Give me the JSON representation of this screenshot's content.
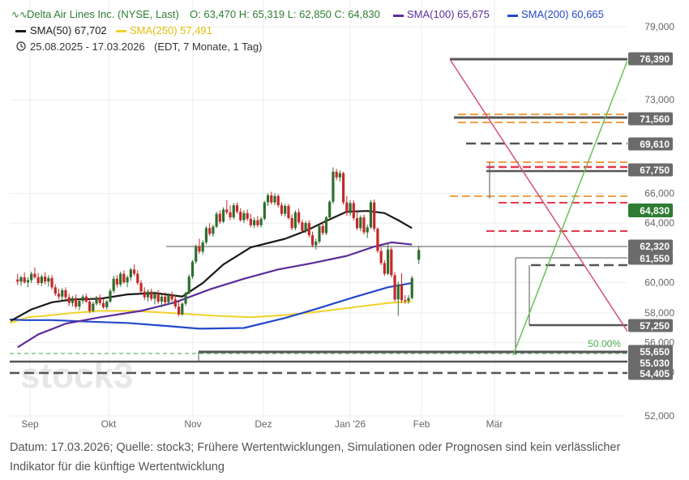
{
  "header": {
    "instrument": "Delta Air Lines Inc. (NYSE, Last)",
    "ohlc": "O: 63,470   H: 65,319   L: 62,850   C: 64,830",
    "sma100": "SMA(100)  65,675",
    "sma200": "SMA(200)  60,665",
    "sma50": "SMA(50)  67,702",
    "sma250": "SMA(250)  57,491",
    "period": "25.08.2025 - 17.03.2026",
    "period_note": "(EDT, 7 Monate, 1 Tag)"
  },
  "watermark": "stock3",
  "fib_label": "50.00%",
  "caption": {
    "line1": "Datum: 17.03.2026; Quelle: stock3; Frühere Wertentwicklungen, Simulationen oder Prognosen sind kein verlässlicher",
    "line2": "Indikator für die künftige Wertentwicklung"
  },
  "colors": {
    "up": "#2e6e2e",
    "down": "#c62828",
    "sma50": "#1a1a1a",
    "sma100": "#5b2d9a",
    "sma200": "#2449c9",
    "sma250": "#f0d22a",
    "price_badge": "#2e7d32",
    "level_badge": "#6b6b6b",
    "orange_level": "#f0a04b",
    "red_level": "#e53950",
    "trend_red": "#d64f7a",
    "trend_green": "#6bbf59"
  },
  "chart_data": {
    "type": "candlestick",
    "x_axis_ticks": [
      "Sep",
      "Okt",
      "Nov",
      "Dez",
      "Jan '26",
      "Feb",
      "Mär"
    ],
    "y_axis_ticks": [
      "52,000",
      "54,000",
      "56,000",
      "58,000",
      "60,000",
      "64,000",
      "66,000",
      "73,000",
      "79,000"
    ],
    "ylim": [
      51.4,
      79.5
    ],
    "last_price": "64,830",
    "level_labels": [
      "76,390",
      "71,560",
      "69,610",
      "67,750",
      "62,320",
      "61,550",
      "57,250",
      "55,650",
      "55,030",
      "54,405"
    ],
    "candles": [
      {
        "x": 2,
        "o": 60.7,
        "h": 61.5,
        "l": 59.9,
        "c": 60.4
      },
      {
        "x": 3,
        "o": 60.4,
        "h": 61.2,
        "l": 59.8,
        "c": 61.0
      },
      {
        "x": 4,
        "o": 61.0,
        "h": 61.7,
        "l": 60.1,
        "c": 60.3
      },
      {
        "x": 5,
        "o": 60.3,
        "h": 61.0,
        "l": 59.6,
        "c": 60.6
      },
      {
        "x": 6,
        "o": 60.6,
        "h": 61.8,
        "l": 60.2,
        "c": 61.5
      },
      {
        "x": 7,
        "o": 61.5,
        "h": 62.4,
        "l": 60.8,
        "c": 61.0
      },
      {
        "x": 8,
        "o": 61.0,
        "h": 61.6,
        "l": 59.9,
        "c": 60.2
      },
      {
        "x": 9,
        "o": 60.2,
        "h": 61.4,
        "l": 59.8,
        "c": 61.1
      },
      {
        "x": 10,
        "o": 61.1,
        "h": 61.7,
        "l": 60.0,
        "c": 60.4
      },
      {
        "x": 11,
        "o": 60.4,
        "h": 61.3,
        "l": 59.7,
        "c": 60.9
      },
      {
        "x": 12,
        "o": 60.9,
        "h": 61.3,
        "l": 59.3,
        "c": 59.6
      },
      {
        "x": 13,
        "o": 59.6,
        "h": 60.0,
        "l": 58.4,
        "c": 58.7
      },
      {
        "x": 14,
        "o": 58.7,
        "h": 59.4,
        "l": 57.9,
        "c": 58.3
      },
      {
        "x": 15,
        "o": 58.3,
        "h": 59.5,
        "l": 57.8,
        "c": 59.2
      },
      {
        "x": 16,
        "o": 59.2,
        "h": 59.6,
        "l": 57.9,
        "c": 58.2
      },
      {
        "x": 17,
        "o": 58.2,
        "h": 58.7,
        "l": 57.0,
        "c": 57.4
      },
      {
        "x": 18,
        "o": 57.4,
        "h": 58.4,
        "l": 56.9,
        "c": 58.1
      },
      {
        "x": 19,
        "o": 58.1,
        "h": 58.6,
        "l": 56.6,
        "c": 56.9
      },
      {
        "x": 20,
        "o": 56.9,
        "h": 58.0,
        "l": 56.4,
        "c": 57.7
      },
      {
        "x": 21,
        "o": 57.7,
        "h": 58.6,
        "l": 57.3,
        "c": 58.3
      },
      {
        "x": 22,
        "o": 58.3,
        "h": 58.7,
        "l": 57.4,
        "c": 57.6
      },
      {
        "x": 23,
        "o": 57.6,
        "h": 58.1,
        "l": 56.0,
        "c": 56.3
      },
      {
        "x": 24,
        "o": 56.3,
        "h": 57.6,
        "l": 56.1,
        "c": 57.3
      },
      {
        "x": 25,
        "o": 57.3,
        "h": 58.4,
        "l": 57.0,
        "c": 58.2
      },
      {
        "x": 26,
        "o": 58.2,
        "h": 58.6,
        "l": 57.1,
        "c": 57.4
      },
      {
        "x": 27,
        "o": 57.4,
        "h": 58.0,
        "l": 56.6,
        "c": 56.8
      },
      {
        "x": 28,
        "o": 56.8,
        "h": 57.8,
        "l": 56.5,
        "c": 57.6
      },
      {
        "x": 29,
        "o": 57.6,
        "h": 59.4,
        "l": 57.4,
        "c": 59.1
      },
      {
        "x": 30,
        "o": 59.1,
        "h": 61.2,
        "l": 58.8,
        "c": 60.8
      },
      {
        "x": 31,
        "o": 60.8,
        "h": 61.3,
        "l": 59.6,
        "c": 60.0
      },
      {
        "x": 32,
        "o": 60.0,
        "h": 61.8,
        "l": 59.7,
        "c": 61.5
      },
      {
        "x": 33,
        "o": 61.5,
        "h": 62.0,
        "l": 60.1,
        "c": 60.3
      },
      {
        "x": 34,
        "o": 60.3,
        "h": 61.3,
        "l": 59.6,
        "c": 61.0
      },
      {
        "x": 35,
        "o": 61.0,
        "h": 62.3,
        "l": 60.5,
        "c": 62.1
      },
      {
        "x": 36,
        "o": 62.1,
        "h": 62.8,
        "l": 61.2,
        "c": 61.5
      },
      {
        "x": 37,
        "o": 61.5,
        "h": 62.0,
        "l": 59.9,
        "c": 60.2
      },
      {
        "x": 38,
        "o": 60.2,
        "h": 60.6,
        "l": 58.7,
        "c": 59.0
      },
      {
        "x": 39,
        "o": 59.0,
        "h": 59.6,
        "l": 57.8,
        "c": 58.2
      },
      {
        "x": 40,
        "o": 58.2,
        "h": 59.3,
        "l": 57.6,
        "c": 59.0
      },
      {
        "x": 41,
        "o": 59.0,
        "h": 59.4,
        "l": 57.7,
        "c": 58.0
      },
      {
        "x": 42,
        "o": 58.0,
        "h": 59.0,
        "l": 57.2,
        "c": 58.7
      },
      {
        "x": 43,
        "o": 58.7,
        "h": 59.2,
        "l": 57.3,
        "c": 57.6
      },
      {
        "x": 44,
        "o": 57.6,
        "h": 58.6,
        "l": 56.8,
        "c": 58.3
      },
      {
        "x": 45,
        "o": 58.3,
        "h": 58.9,
        "l": 57.2,
        "c": 57.5
      },
      {
        "x": 46,
        "o": 57.5,
        "h": 58.8,
        "l": 57.2,
        "c": 58.5
      },
      {
        "x": 47,
        "o": 58.5,
        "h": 59.0,
        "l": 57.6,
        "c": 57.9
      },
      {
        "x": 48,
        "o": 57.9,
        "h": 58.5,
        "l": 56.6,
        "c": 56.9
      },
      {
        "x": 49,
        "o": 56.9,
        "h": 57.6,
        "l": 55.5,
        "c": 55.8
      },
      {
        "x": 50,
        "o": 55.8,
        "h": 57.5,
        "l": 55.6,
        "c": 57.3
      },
      {
        "x": 51,
        "o": 57.3,
        "h": 59.0,
        "l": 57.0,
        "c": 58.8
      },
      {
        "x": 52,
        "o": 58.8,
        "h": 61.4,
        "l": 58.6,
        "c": 61.1
      },
      {
        "x": 53,
        "o": 61.1,
        "h": 63.4,
        "l": 60.8,
        "c": 63.2
      },
      {
        "x": 54,
        "o": 63.2,
        "h": 65.6,
        "l": 62.9,
        "c": 65.3
      },
      {
        "x": 55,
        "o": 65.3,
        "h": 66.4,
        "l": 64.3,
        "c": 64.6
      },
      {
        "x": 56,
        "o": 64.6,
        "h": 66.2,
        "l": 64.2,
        "c": 65.9
      },
      {
        "x": 57,
        "o": 65.9,
        "h": 68.2,
        "l": 65.6,
        "c": 67.9
      },
      {
        "x": 58,
        "o": 67.9,
        "h": 68.6,
        "l": 66.8,
        "c": 67.1
      },
      {
        "x": 59,
        "o": 67.1,
        "h": 68.4,
        "l": 66.7,
        "c": 68.1
      },
      {
        "x": 60,
        "o": 68.1,
        "h": 70.2,
        "l": 67.9,
        "c": 69.9
      },
      {
        "x": 61,
        "o": 69.9,
        "h": 70.4,
        "l": 68.5,
        "c": 68.8
      },
      {
        "x": 62,
        "o": 68.8,
        "h": 70.8,
        "l": 68.6,
        "c": 70.5
      },
      {
        "x": 63,
        "o": 70.5,
        "h": 71.8,
        "l": 69.8,
        "c": 70.1
      },
      {
        "x": 64,
        "o": 70.1,
        "h": 71.1,
        "l": 69.0,
        "c": 69.4
      },
      {
        "x": 65,
        "o": 69.4,
        "h": 71.4,
        "l": 69.1,
        "c": 71.1
      },
      {
        "x": 66,
        "o": 71.1,
        "h": 71.5,
        "l": 69.9,
        "c": 70.2
      },
      {
        "x": 67,
        "o": 70.2,
        "h": 70.7,
        "l": 68.8,
        "c": 69.0
      },
      {
        "x": 68,
        "o": 69.0,
        "h": 70.4,
        "l": 68.6,
        "c": 70.0
      },
      {
        "x": 69,
        "o": 70.0,
        "h": 70.5,
        "l": 68.9,
        "c": 69.2
      },
      {
        "x": 70,
        "o": 69.2,
        "h": 69.9,
        "l": 68.0,
        "c": 68.3
      },
      {
        "x": 71,
        "o": 68.3,
        "h": 69.4,
        "l": 67.9,
        "c": 69.0
      },
      {
        "x": 72,
        "o": 69.0,
        "h": 69.6,
        "l": 68.0,
        "c": 68.3
      },
      {
        "x": 73,
        "o": 68.3,
        "h": 69.5,
        "l": 68.0,
        "c": 69.2
      },
      {
        "x": 74,
        "o": 69.2,
        "h": 71.7,
        "l": 69.0,
        "c": 71.5
      },
      {
        "x": 75,
        "o": 71.5,
        "h": 72.8,
        "l": 71.0,
        "c": 72.5
      },
      {
        "x": 76,
        "o": 72.5,
        "h": 73.0,
        "l": 71.2,
        "c": 71.5
      },
      {
        "x": 77,
        "o": 71.5,
        "h": 72.8,
        "l": 71.1,
        "c": 72.4
      },
      {
        "x": 78,
        "o": 72.4,
        "h": 72.7,
        "l": 70.8,
        "c": 71.1
      },
      {
        "x": 79,
        "o": 71.1,
        "h": 71.5,
        "l": 69.6,
        "c": 69.9
      },
      {
        "x": 80,
        "o": 69.9,
        "h": 71.3,
        "l": 69.5,
        "c": 71.0
      },
      {
        "x": 81,
        "o": 71.0,
        "h": 71.3,
        "l": 69.1,
        "c": 69.3
      },
      {
        "x": 82,
        "o": 69.3,
        "h": 69.8,
        "l": 67.6,
        "c": 67.9
      },
      {
        "x": 83,
        "o": 67.9,
        "h": 70.4,
        "l": 67.6,
        "c": 70.1
      },
      {
        "x": 84,
        "o": 70.1,
        "h": 70.6,
        "l": 68.4,
        "c": 68.7
      },
      {
        "x": 85,
        "o": 68.7,
        "h": 69.1,
        "l": 67.2,
        "c": 67.5
      },
      {
        "x": 86,
        "o": 67.5,
        "h": 68.9,
        "l": 67.2,
        "c": 68.6
      },
      {
        "x": 87,
        "o": 68.6,
        "h": 69.0,
        "l": 66.6,
        "c": 66.9
      },
      {
        "x": 88,
        "o": 66.9,
        "h": 67.4,
        "l": 65.2,
        "c": 65.5
      },
      {
        "x": 89,
        "o": 65.5,
        "h": 66.4,
        "l": 64.9,
        "c": 66.0
      },
      {
        "x": 90,
        "o": 66.0,
        "h": 68.4,
        "l": 65.7,
        "c": 68.2
      },
      {
        "x": 91,
        "o": 68.2,
        "h": 68.8,
        "l": 66.9,
        "c": 67.2
      },
      {
        "x": 92,
        "o": 67.2,
        "h": 69.6,
        "l": 66.9,
        "c": 69.4
      },
      {
        "x": 93,
        "o": 69.4,
        "h": 71.8,
        "l": 69.1,
        "c": 71.6
      },
      {
        "x": 94,
        "o": 71.6,
        "h": 76.4,
        "l": 71.3,
        "c": 75.8
      },
      {
        "x": 95,
        "o": 75.8,
        "h": 76.2,
        "l": 74.6,
        "c": 75.0
      },
      {
        "x": 96,
        "o": 75.0,
        "h": 76.0,
        "l": 74.4,
        "c": 75.6
      },
      {
        "x": 97,
        "o": 75.6,
        "h": 75.8,
        "l": 71.2,
        "c": 71.5
      },
      {
        "x": 98,
        "o": 71.5,
        "h": 72.4,
        "l": 69.6,
        "c": 70.0
      },
      {
        "x": 99,
        "o": 70.0,
        "h": 71.8,
        "l": 69.6,
        "c": 71.4
      },
      {
        "x": 100,
        "o": 71.4,
        "h": 71.8,
        "l": 69.0,
        "c": 69.3
      },
      {
        "x": 101,
        "o": 69.3,
        "h": 70.1,
        "l": 67.6,
        "c": 67.9
      },
      {
        "x": 102,
        "o": 67.9,
        "h": 69.7,
        "l": 67.5,
        "c": 69.4
      },
      {
        "x": 103,
        "o": 69.4,
        "h": 69.8,
        "l": 67.0,
        "c": 67.3
      },
      {
        "x": 104,
        "o": 67.3,
        "h": 68.4,
        "l": 66.5,
        "c": 68.0
      },
      {
        "x": 105,
        "o": 68.0,
        "h": 71.8,
        "l": 67.8,
        "c": 71.5
      },
      {
        "x": 106,
        "o": 71.5,
        "h": 71.9,
        "l": 67.4,
        "c": 67.8
      },
      {
        "x": 107,
        "o": 67.8,
        "h": 68.0,
        "l": 64.4,
        "c": 64.7
      },
      {
        "x": 108,
        "o": 64.7,
        "h": 65.2,
        "l": 62.7,
        "c": 63.0
      },
      {
        "x": 109,
        "o": 63.0,
        "h": 63.4,
        "l": 61.2,
        "c": 61.5
      },
      {
        "x": 110,
        "o": 61.5,
        "h": 65.8,
        "l": 61.3,
        "c": 64.9
      },
      {
        "x": 111,
        "o": 64.9,
        "h": 65.2,
        "l": 61.0,
        "c": 61.3
      },
      {
        "x": 112,
        "o": 61.3,
        "h": 61.7,
        "l": 57.6,
        "c": 57.9
      },
      {
        "x": 113,
        "o": 57.9,
        "h": 60.4,
        "l": 55.6,
        "c": 60.0
      },
      {
        "x": 114,
        "o": 60.0,
        "h": 61.6,
        "l": 57.4,
        "c": 57.8
      },
      {
        "x": 115,
        "o": 57.8,
        "h": 58.5,
        "l": 57.3,
        "c": 57.7
      },
      {
        "x": 116,
        "o": 57.7,
        "h": 58.5,
        "l": 57.3,
        "c": 58.1
      },
      {
        "x": 117,
        "o": 58.1,
        "h": 61.2,
        "l": 57.9,
        "c": 60.9
      },
      {
        "x": 119,
        "o": 63.47,
        "h": 65.319,
        "l": 62.85,
        "c": 64.83
      }
    ]
  }
}
